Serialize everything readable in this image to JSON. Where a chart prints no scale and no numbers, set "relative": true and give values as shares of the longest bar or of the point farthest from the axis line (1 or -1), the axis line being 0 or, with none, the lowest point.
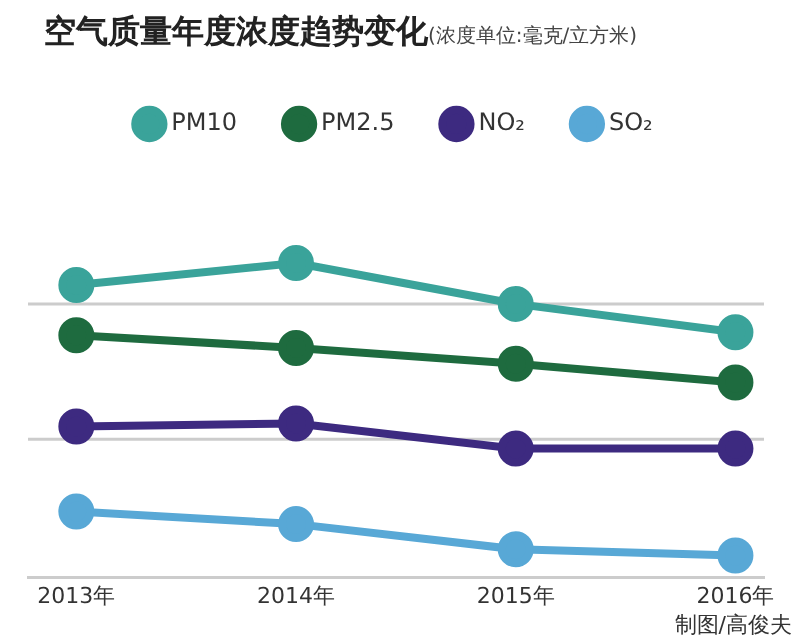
{
  "chart_data": {
    "type": "line",
    "title": "空气质量年度浓度趋势变化",
    "subtitle": "(浓度单位:毫克/立方米)",
    "categories": [
      "2013年",
      "2014年",
      "2015年",
      "2016年"
    ],
    "relative": true,
    "ref_lines": [
      {
        "axis": "y",
        "value": 0.87,
        "color": "#cccccc"
      },
      {
        "axis": "y",
        "value": 0.44,
        "color": "#cccccc"
      }
    ],
    "legend": "top",
    "marker": "circle",
    "line_style": "solid",
    "series": [
      {
        "name": "PM10",
        "color": "#3aa39a",
        "values": [
          0.93,
          1,
          0.87,
          0.78
        ]
      },
      {
        "name": "PM2.5",
        "color": "#1e6b3f",
        "values": [
          0.77,
          0.73,
          0.68,
          0.62
        ]
      },
      {
        "name": "NO₂",
        "color": "#3d2a80",
        "values": [
          0.48,
          0.49,
          0.41,
          0.41
        ]
      },
      {
        "name": "SO₂",
        "color": "#58a8d6",
        "values": [
          0.21,
          0.17,
          0.09,
          0.07
        ]
      }
    ],
    "annotations": [
      "制图/高俊夫"
    ]
  }
}
